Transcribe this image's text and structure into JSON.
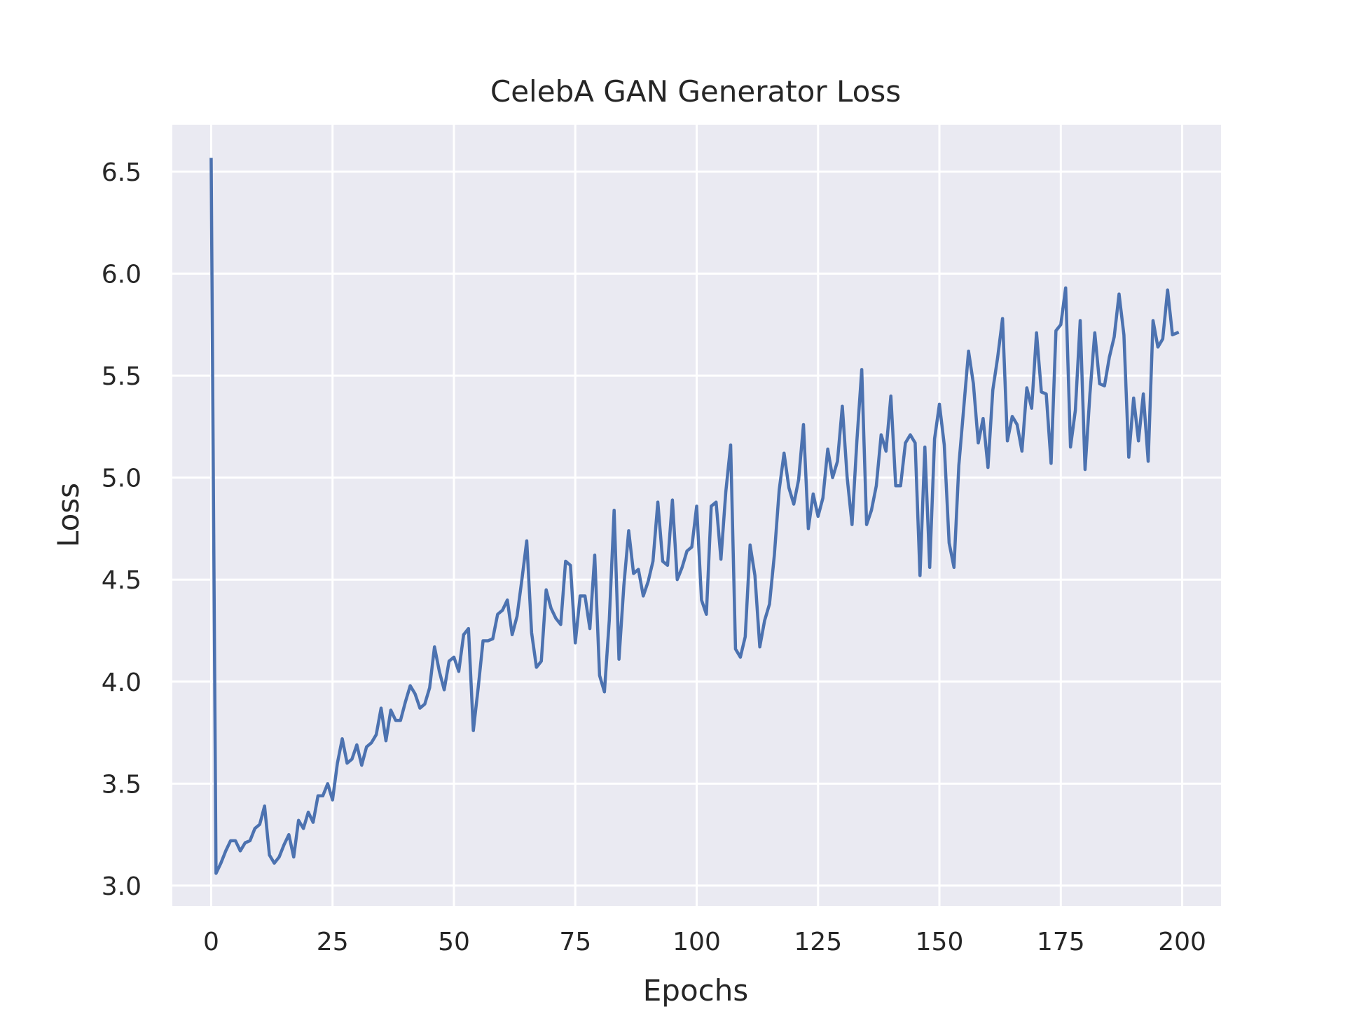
{
  "chart_data": {
    "type": "line",
    "title": "CelebA GAN Generator Loss",
    "xlabel": "Epochs",
    "ylabel": "Loss",
    "xlim": [
      -8,
      208
    ],
    "ylim": [
      2.9,
      6.73
    ],
    "grid": true,
    "x_ticks": [
      0,
      25,
      50,
      75,
      100,
      125,
      150,
      175,
      200
    ],
    "x_tick_labels": [
      "0",
      "25",
      "50",
      "75",
      "100",
      "125",
      "150",
      "175",
      "200"
    ],
    "y_ticks": [
      3.0,
      3.5,
      4.0,
      4.5,
      5.0,
      5.5,
      6.0,
      6.5
    ],
    "y_tick_labels": [
      "3.0",
      "3.5",
      "4.0",
      "4.5",
      "5.0",
      "5.5",
      "6.0",
      "6.5"
    ],
    "colors": {
      "line": "#4c72b0",
      "plot_bg": "#eaeaf2",
      "grid": "#ffffff"
    },
    "series": [
      {
        "x_start": 0,
        "x_step": 1,
        "values": [
          6.56,
          3.06,
          3.11,
          3.17,
          3.22,
          3.22,
          3.17,
          3.21,
          3.22,
          3.28,
          3.3,
          3.39,
          3.15,
          3.11,
          3.14,
          3.2,
          3.25,
          3.14,
          3.32,
          3.28,
          3.36,
          3.31,
          3.44,
          3.44,
          3.5,
          3.42,
          3.6,
          3.72,
          3.6,
          3.62,
          3.69,
          3.59,
          3.68,
          3.7,
          3.74,
          3.87,
          3.71,
          3.86,
          3.81,
          3.81,
          3.9,
          3.98,
          3.94,
          3.87,
          3.89,
          3.97,
          4.17,
          4.05,
          3.96,
          4.1,
          4.12,
          4.05,
          4.23,
          4.26,
          3.76,
          3.97,
          4.2,
          4.2,
          4.21,
          4.33,
          4.35,
          4.4,
          4.23,
          4.32,
          4.5,
          4.69,
          4.24,
          4.07,
          4.1,
          4.45,
          4.36,
          4.31,
          4.28,
          4.59,
          4.57,
          4.19,
          4.42,
          4.42,
          4.26,
          4.62,
          4.03,
          3.95,
          4.3,
          4.84,
          4.11,
          4.47,
          4.74,
          4.53,
          4.55,
          4.42,
          4.49,
          4.59,
          4.88,
          4.59,
          4.57,
          4.89,
          4.5,
          4.56,
          4.64,
          4.66,
          4.86,
          4.4,
          4.33,
          4.86,
          4.88,
          4.6,
          4.93,
          5.16,
          4.16,
          4.12,
          4.22,
          4.67,
          4.52,
          4.17,
          4.3,
          4.38,
          4.62,
          4.94,
          5.12,
          4.95,
          4.87,
          4.99,
          5.26,
          4.75,
          4.92,
          4.81,
          4.9,
          5.14,
          5.0,
          5.08,
          5.35,
          5.0,
          4.77,
          5.18,
          5.53,
          4.77,
          4.84,
          4.96,
          5.21,
          5.13,
          5.4,
          4.96,
          4.96,
          5.17,
          5.21,
          5.17,
          4.52,
          5.15,
          4.56,
          5.19,
          5.36,
          5.16,
          4.68,
          4.56,
          5.06,
          5.34,
          5.62,
          5.46,
          5.17,
          5.29,
          5.05,
          5.43,
          5.59,
          5.78,
          5.18,
          5.3,
          5.26,
          5.13,
          5.44,
          5.34,
          5.71,
          5.42,
          5.41,
          5.07,
          5.72,
          5.75,
          5.93,
          5.15,
          5.33,
          5.77,
          5.04,
          5.41,
          5.71,
          5.46,
          5.45,
          5.59,
          5.69,
          5.9,
          5.7,
          5.1,
          5.39,
          5.18,
          5.41,
          5.08,
          5.77,
          5.64,
          5.68,
          5.92,
          5.7,
          5.71
        ]
      }
    ]
  }
}
